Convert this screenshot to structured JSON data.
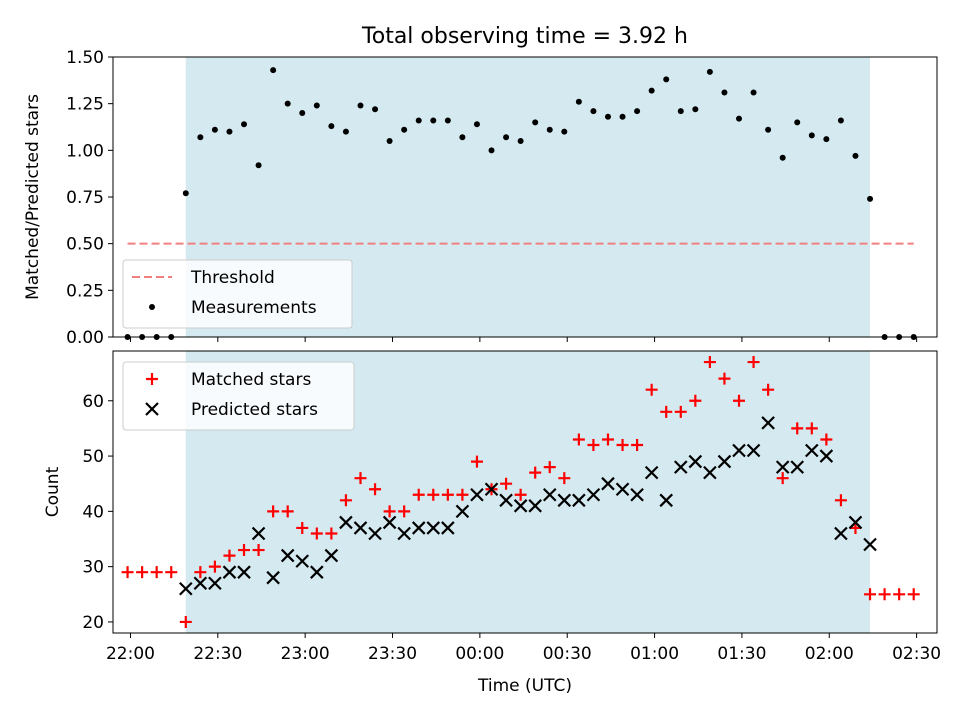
{
  "chart_data": [
    {
      "type": "scatter",
      "title": "Total observing time = 3.92 h",
      "ylabel": "Matched/Predicted stars",
      "xlabel": "",
      "xlim": [
        "21:54",
        "02:37"
      ],
      "ylim": [
        0,
        1.5
      ],
      "yticks": [
        "0.00",
        "0.25",
        "0.50",
        "0.75",
        "1.00",
        "1.25",
        "1.50"
      ],
      "shaded_span": {
        "from": "22:19",
        "to": "02:14",
        "color": "#d4eaf0"
      },
      "threshold": {
        "name": "Threshold",
        "y": 0.5,
        "from": "21:59",
        "to": "02:29",
        "color": "#f08080",
        "style": "dashed"
      },
      "legend": {
        "placement": "lower left",
        "entries": [
          "Threshold",
          "Measurements"
        ]
      },
      "series": [
        {
          "name": "Measurements",
          "marker": "dot",
          "color": "#000000",
          "points": [
            [
              "21:59",
              0.0
            ],
            [
              "22:04",
              0.0
            ],
            [
              "22:09",
              0.0
            ],
            [
              "22:14",
              0.0
            ],
            [
              "22:19",
              0.77
            ],
            [
              "22:24",
              1.07
            ],
            [
              "22:29",
              1.11
            ],
            [
              "22:34",
              1.1
            ],
            [
              "22:39",
              1.14
            ],
            [
              "22:44",
              0.92
            ],
            [
              "22:49",
              1.43
            ],
            [
              "22:54",
              1.25
            ],
            [
              "22:59",
              1.2
            ],
            [
              "23:04",
              1.24
            ],
            [
              "23:09",
              1.13
            ],
            [
              "23:14",
              1.1
            ],
            [
              "23:19",
              1.24
            ],
            [
              "23:24",
              1.22
            ],
            [
              "23:29",
              1.05
            ],
            [
              "23:34",
              1.11
            ],
            [
              "23:39",
              1.16
            ],
            [
              "23:44",
              1.16
            ],
            [
              "23:49",
              1.16
            ],
            [
              "23:54",
              1.07
            ],
            [
              "23:59",
              1.14
            ],
            [
              "00:04",
              1.0
            ],
            [
              "00:09",
              1.07
            ],
            [
              "00:14",
              1.05
            ],
            [
              "00:19",
              1.15
            ],
            [
              "00:24",
              1.11
            ],
            [
              "00:29",
              1.1
            ],
            [
              "00:34",
              1.26
            ],
            [
              "00:39",
              1.21
            ],
            [
              "00:44",
              1.18
            ],
            [
              "00:49",
              1.18
            ],
            [
              "00:54",
              1.21
            ],
            [
              "00:59",
              1.32
            ],
            [
              "01:04",
              1.38
            ],
            [
              "01:09",
              1.21
            ],
            [
              "01:14",
              1.22
            ],
            [
              "01:19",
              1.42
            ],
            [
              "01:24",
              1.31
            ],
            [
              "01:29",
              1.17
            ],
            [
              "01:34",
              1.31
            ],
            [
              "01:39",
              1.11
            ],
            [
              "01:44",
              0.96
            ],
            [
              "01:49",
              1.15
            ],
            [
              "01:54",
              1.08
            ],
            [
              "01:59",
              1.06
            ],
            [
              "02:04",
              1.16
            ],
            [
              "02:09",
              0.97
            ],
            [
              "02:14",
              0.74
            ],
            [
              "02:19",
              0.0
            ],
            [
              "02:24",
              0.0
            ],
            [
              "02:29",
              0.0
            ]
          ]
        }
      ]
    },
    {
      "type": "scatter",
      "title": "",
      "xlabel": "Time (UTC)",
      "ylabel": "Count",
      "xlim": [
        "21:54",
        "02:37"
      ],
      "ylim": [
        18,
        69
      ],
      "yticks": [
        "20",
        "30",
        "40",
        "50",
        "60"
      ],
      "xticks": [
        "22:00",
        "22:30",
        "23:00",
        "23:30",
        "00:00",
        "00:30",
        "01:00",
        "01:30",
        "02:00",
        "02:30"
      ],
      "shaded_span": {
        "from": "22:19",
        "to": "02:14",
        "color": "#d4eaf0"
      },
      "legend": {
        "placement": "upper left",
        "entries": [
          "Matched stars",
          "Predicted stars"
        ]
      },
      "series": [
        {
          "name": "Matched stars",
          "marker": "plus",
          "color": "#ff0000",
          "points": [
            [
              "21:59",
              29
            ],
            [
              "22:04",
              29
            ],
            [
              "22:09",
              29
            ],
            [
              "22:14",
              29
            ],
            [
              "22:19",
              20
            ],
            [
              "22:24",
              29
            ],
            [
              "22:29",
              30
            ],
            [
              "22:34",
              32
            ],
            [
              "22:39",
              33
            ],
            [
              "22:44",
              33
            ],
            [
              "22:49",
              40
            ],
            [
              "22:54",
              40
            ],
            [
              "22:59",
              37
            ],
            [
              "23:04",
              36
            ],
            [
              "23:09",
              36
            ],
            [
              "23:14",
              42
            ],
            [
              "23:19",
              46
            ],
            [
              "23:24",
              44
            ],
            [
              "23:29",
              40
            ],
            [
              "23:34",
              40
            ],
            [
              "23:39",
              43
            ],
            [
              "23:44",
              43
            ],
            [
              "23:49",
              43
            ],
            [
              "23:54",
              43
            ],
            [
              "23:59",
              49
            ],
            [
              "00:04",
              44
            ],
            [
              "00:09",
              45
            ],
            [
              "00:14",
              43
            ],
            [
              "00:19",
              47
            ],
            [
              "00:24",
              48
            ],
            [
              "00:29",
              46
            ],
            [
              "00:34",
              53
            ],
            [
              "00:39",
              52
            ],
            [
              "00:44",
              53
            ],
            [
              "00:49",
              52
            ],
            [
              "00:54",
              52
            ],
            [
              "00:59",
              62
            ],
            [
              "01:04",
              58
            ],
            [
              "01:09",
              58
            ],
            [
              "01:14",
              60
            ],
            [
              "01:19",
              67
            ],
            [
              "01:24",
              64
            ],
            [
              "01:29",
              60
            ],
            [
              "01:34",
              67
            ],
            [
              "01:39",
              62
            ],
            [
              "01:44",
              46
            ],
            [
              "01:49",
              55
            ],
            [
              "01:54",
              55
            ],
            [
              "01:59",
              53
            ],
            [
              "02:04",
              42
            ],
            [
              "02:09",
              37
            ],
            [
              "02:14",
              25
            ],
            [
              "02:19",
              25
            ],
            [
              "02:24",
              25
            ],
            [
              "02:29",
              25
            ]
          ]
        },
        {
          "name": "Predicted stars",
          "marker": "x",
          "color": "#000000",
          "points": [
            [
              "22:19",
              26
            ],
            [
              "22:24",
              27
            ],
            [
              "22:29",
              27
            ],
            [
              "22:34",
              29
            ],
            [
              "22:39",
              29
            ],
            [
              "22:44",
              36
            ],
            [
              "22:49",
              28
            ],
            [
              "22:54",
              32
            ],
            [
              "22:59",
              31
            ],
            [
              "23:04",
              29
            ],
            [
              "23:09",
              32
            ],
            [
              "23:14",
              38
            ],
            [
              "23:19",
              37
            ],
            [
              "23:24",
              36
            ],
            [
              "23:29",
              38
            ],
            [
              "23:34",
              36
            ],
            [
              "23:39",
              37
            ],
            [
              "23:44",
              37
            ],
            [
              "23:49",
              37
            ],
            [
              "23:54",
              40
            ],
            [
              "23:59",
              43
            ],
            [
              "00:04",
              44
            ],
            [
              "00:09",
              42
            ],
            [
              "00:14",
              41
            ],
            [
              "00:19",
              41
            ],
            [
              "00:24",
              43
            ],
            [
              "00:29",
              42
            ],
            [
              "00:34",
              42
            ],
            [
              "00:39",
              43
            ],
            [
              "00:44",
              45
            ],
            [
              "00:49",
              44
            ],
            [
              "00:54",
              43
            ],
            [
              "00:59",
              47
            ],
            [
              "01:04",
              42
            ],
            [
              "01:09",
              48
            ],
            [
              "01:14",
              49
            ],
            [
              "01:19",
              47
            ],
            [
              "01:24",
              49
            ],
            [
              "01:29",
              51
            ],
            [
              "01:34",
              51
            ],
            [
              "01:39",
              56
            ],
            [
              "01:44",
              48
            ],
            [
              "01:49",
              48
            ],
            [
              "01:54",
              51
            ],
            [
              "01:59",
              50
            ],
            [
              "02:04",
              36
            ],
            [
              "02:09",
              38
            ],
            [
              "02:14",
              34
            ]
          ]
        }
      ]
    }
  ]
}
